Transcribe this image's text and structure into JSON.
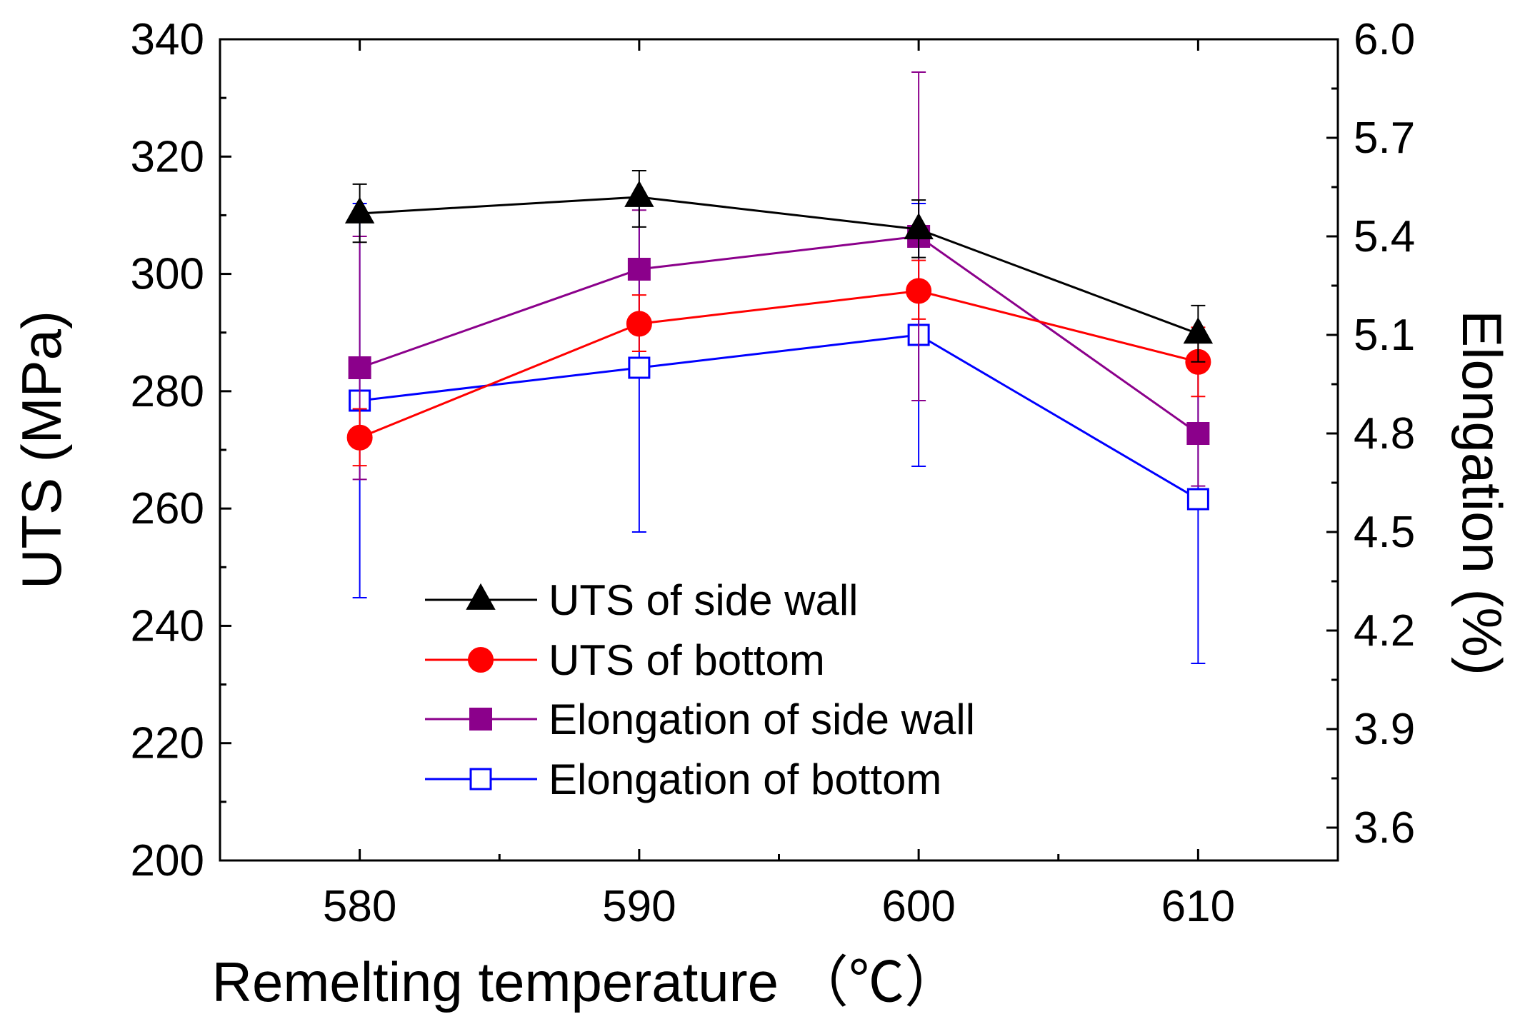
{
  "chart_data": {
    "type": "line",
    "title": "",
    "xlabel": "Remelting temperature",
    "xlabel_unit": "（℃）",
    "ylabel": "UTS (MPa)",
    "y2label": "Elongation (%)",
    "x": [
      580,
      590,
      600,
      610
    ],
    "xlim": [
      575,
      615
    ],
    "xticks": [
      "580",
      "590",
      "600",
      "610"
    ],
    "ylim": [
      200,
      340
    ],
    "yticks": [
      "200",
      "220",
      "240",
      "260",
      "280",
      "300",
      "320",
      "340"
    ],
    "y2lim": [
      3.5,
      6.0
    ],
    "y2ticks": [
      "3.6",
      "3.9",
      "4.2",
      "4.5",
      "4.8",
      "5.1",
      "5.4",
      "5.7",
      "6.0"
    ],
    "legend_position": "lower-left",
    "series": [
      {
        "name": "UTS of side wall",
        "axis": "left",
        "color": "#000000",
        "marker": "triangle-filled",
        "values": [
          310.3,
          313.1,
          307.6,
          289.8
        ],
        "err_low": [
          305.4,
          308.0,
          302.8,
          285.0
        ],
        "err_high": [
          315.3,
          317.6,
          312.6,
          294.6
        ]
      },
      {
        "name": "UTS of bottom",
        "axis": "left",
        "color": "#ff0000",
        "marker": "circle-filled",
        "values": [
          272.1,
          291.5,
          297.1,
          285.0
        ],
        "err_low": [
          267.3,
          286.8,
          292.3,
          279.1
        ],
        "err_high": [
          277.0,
          296.4,
          302.3,
          290.9
        ]
      },
      {
        "name": "Elongation of side wall",
        "axis": "right",
        "color": "#8b008b",
        "marker": "square-filled",
        "values": [
          5.0,
          5.3,
          5.4,
          4.8
        ],
        "err_low": [
          4.66,
          5.16,
          4.9,
          4.64
        ],
        "err_high": [
          5.4,
          5.48,
          5.9,
          5.02
        ]
      },
      {
        "name": "Elongation of bottom",
        "axis": "right",
        "color": "#0000ff",
        "marker": "square-open",
        "values": [
          4.9,
          5.0,
          5.1,
          4.6
        ],
        "err_low": [
          4.3,
          4.5,
          4.7,
          4.1
        ],
        "err_high": [
          5.5,
          5.5,
          5.5,
          5.0
        ]
      }
    ]
  }
}
